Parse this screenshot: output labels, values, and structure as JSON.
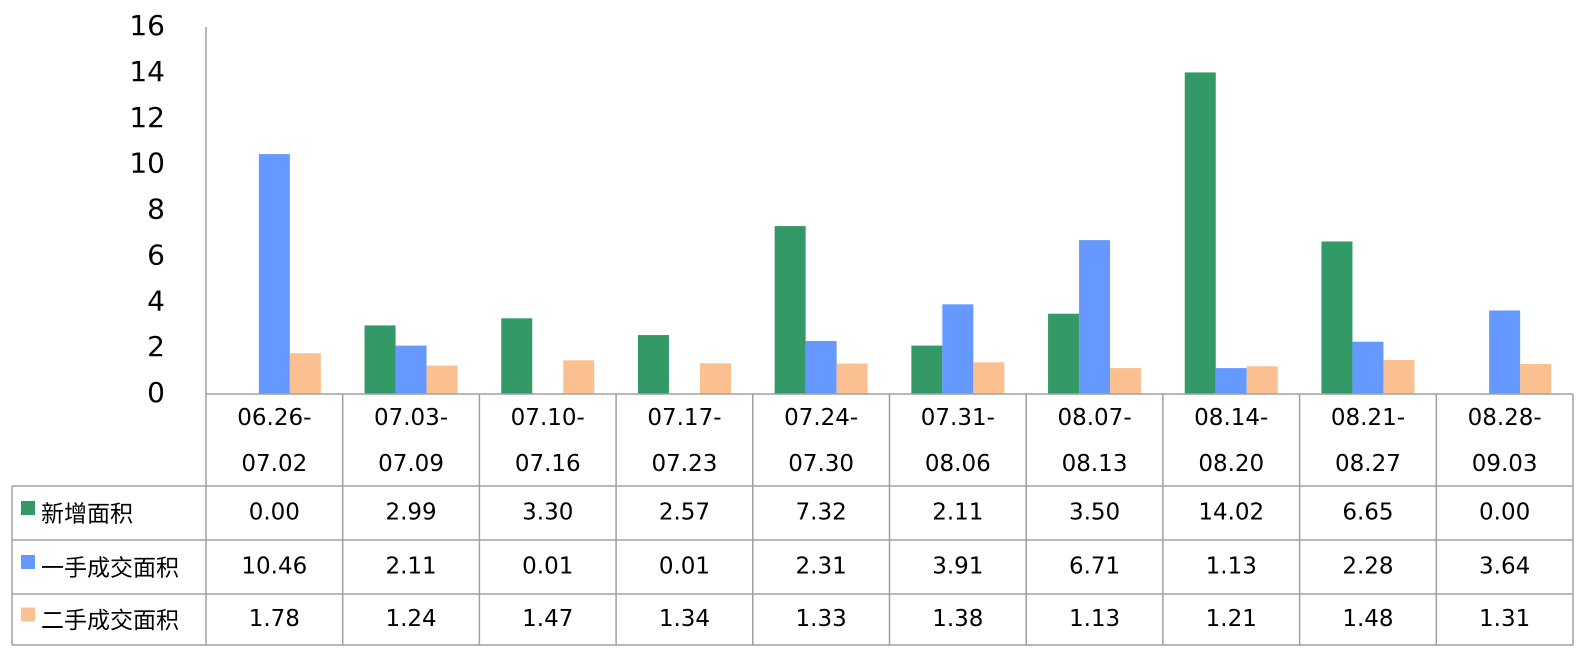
{
  "chart_data": {
    "type": "bar",
    "categories": [
      "06.26-07.02",
      "07.03-07.09",
      "07.10-07.16",
      "07.17-07.23",
      "07.24-07.30",
      "07.31-08.06",
      "08.07-08.13",
      "08.14-08.20",
      "08.21-08.27",
      "08.28-09.03"
    ],
    "series": [
      {
        "name": "新增面积",
        "color": "#339966",
        "values": [
          0,
          2.99,
          3.3,
          2.57,
          7.32,
          2.11,
          3.5,
          14.02,
          6.65,
          0
        ],
        "value_labels": [
          "0.00",
          "2.99",
          "3.30",
          "2.57",
          "7.32",
          "2.11",
          "3.50",
          "14.02",
          "6.65",
          "0.00"
        ]
      },
      {
        "name": "一手成交面积",
        "color": "#6699ff",
        "values": [
          10.46,
          2.11,
          0.01,
          0.01,
          2.31,
          3.91,
          6.71,
          1.13,
          2.28,
          3.64
        ],
        "value_labels": [
          "10.46",
          "2.11",
          "0.01",
          "0.01",
          "2.31",
          "3.91",
          "6.71",
          "1.13",
          "2.28",
          "3.64"
        ]
      },
      {
        "name": "二手成交面积",
        "color": "#fac090",
        "values": [
          1.78,
          1.24,
          1.47,
          1.34,
          1.33,
          1.38,
          1.13,
          1.21,
          1.48,
          1.31
        ],
        "value_labels": [
          "1.78",
          "1.24",
          "1.47",
          "1.34",
          "1.33",
          "1.38",
          "1.13",
          "1.21",
          "1.48",
          "1.31"
        ]
      }
    ],
    "ylim": [
      0,
      16
    ],
    "yticks": [
      0,
      2,
      4,
      6,
      8,
      10,
      12,
      14,
      16
    ],
    "grid": false,
    "legend": "table"
  }
}
